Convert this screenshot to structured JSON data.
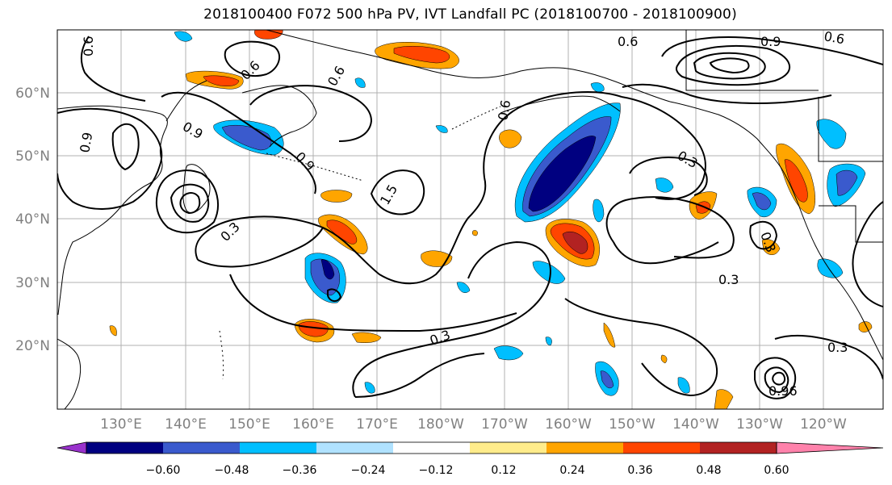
{
  "title": "2018100400 F072 500 hPa PV, IVT Landfall PC (2018100700 - 2018100900)",
  "lon_ticks": [
    "130°E",
    "140°E",
    "150°E",
    "160°E",
    "170°E",
    "180°W",
    "170°W",
    "160°W",
    "150°W",
    "140°W",
    "130°W",
    "120°W"
  ],
  "lat_ticks": [
    "60°N",
    "50°N",
    "40°N",
    "30°N",
    "20°N"
  ],
  "contour_labels": [
    "0.6",
    "0.6",
    "0.6",
    "0.6",
    "0.9",
    "0.9",
    "1.5",
    "0.3",
    "0.3",
    "0.3",
    "0.3",
    "0.3",
    "0.9",
    "0.3",
    "0.6",
    "0.9",
    "0.6",
    "0.96"
  ],
  "colorbar": {
    "colors": [
      "#9932cc",
      "#000080",
      "#3a5acd",
      "#00bfff",
      "#b0e2ff",
      "#ffffff",
      "#ffec8b",
      "#ffa500",
      "#ff4500",
      "#b22222",
      "#ff82ab"
    ],
    "labels": [
      "−0.60",
      "−0.48",
      "−0.36",
      "−0.24",
      "−0.12",
      "0.12",
      "0.24",
      "0.36",
      "0.48",
      "0.60"
    ]
  }
}
